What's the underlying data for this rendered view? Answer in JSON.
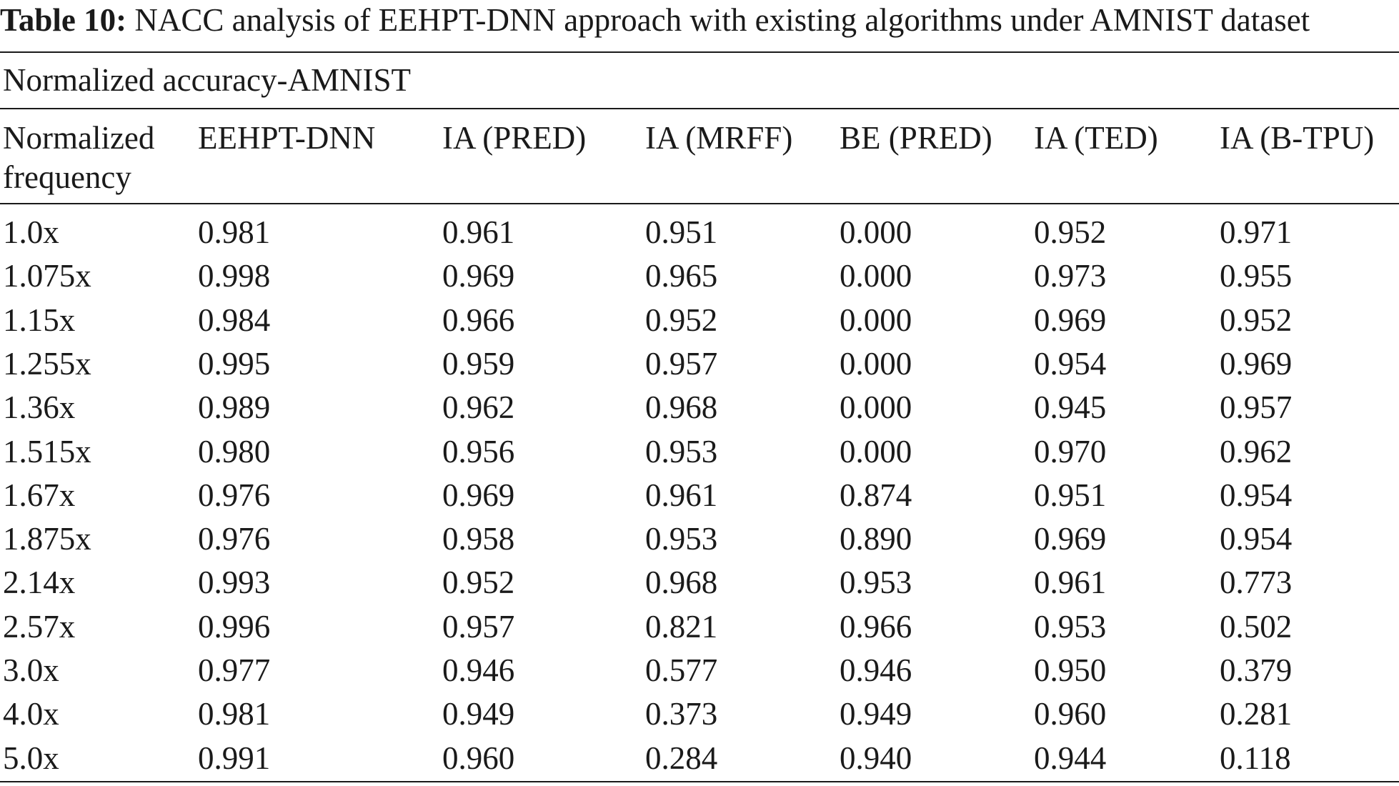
{
  "caption": {
    "label": "Table 10:",
    "text": " NACC analysis of EEHPT-DNN approach with existing algorithms under AMNIST dataset"
  },
  "subheader": "Normalized accuracy-AMNIST",
  "columns": [
    [
      "Normalized",
      "frequency"
    ],
    [
      "EEHPT-DNN"
    ],
    [
      "IA (PRED)"
    ],
    [
      "IA (MRFF)"
    ],
    [
      "BE (PRED)"
    ],
    [
      "IA (TED)"
    ],
    [
      "IA (B-TPU)"
    ]
  ],
  "rows": [
    [
      "1.0x",
      "0.981",
      "0.961",
      "0.951",
      "0.000",
      "0.952",
      "0.971"
    ],
    [
      "1.075x",
      "0.998",
      "0.969",
      "0.965",
      "0.000",
      "0.973",
      "0.955"
    ],
    [
      "1.15x",
      "0.984",
      "0.966",
      "0.952",
      "0.000",
      "0.969",
      "0.952"
    ],
    [
      "1.255x",
      "0.995",
      "0.959",
      "0.957",
      "0.000",
      "0.954",
      "0.969"
    ],
    [
      "1.36x",
      "0.989",
      "0.962",
      "0.968",
      "0.000",
      "0.945",
      "0.957"
    ],
    [
      "1.515x",
      "0.980",
      "0.956",
      "0.953",
      "0.000",
      "0.970",
      "0.962"
    ],
    [
      "1.67x",
      "0.976",
      "0.969",
      "0.961",
      "0.874",
      "0.951",
      "0.954"
    ],
    [
      "1.875x",
      "0.976",
      "0.958",
      "0.953",
      "0.890",
      "0.969",
      "0.954"
    ],
    [
      "2.14x",
      "0.993",
      "0.952",
      "0.968",
      "0.953",
      "0.961",
      "0.773"
    ],
    [
      "2.57x",
      "0.996",
      "0.957",
      "0.821",
      "0.966",
      "0.953",
      "0.502"
    ],
    [
      "3.0x",
      "0.977",
      "0.946",
      "0.577",
      "0.946",
      "0.950",
      "0.379"
    ],
    [
      "4.0x",
      "0.981",
      "0.949",
      "0.373",
      "0.949",
      "0.960",
      "0.281"
    ],
    [
      "5.0x",
      "0.991",
      "0.960",
      "0.284",
      "0.940",
      "0.944",
      "0.118"
    ]
  ]
}
